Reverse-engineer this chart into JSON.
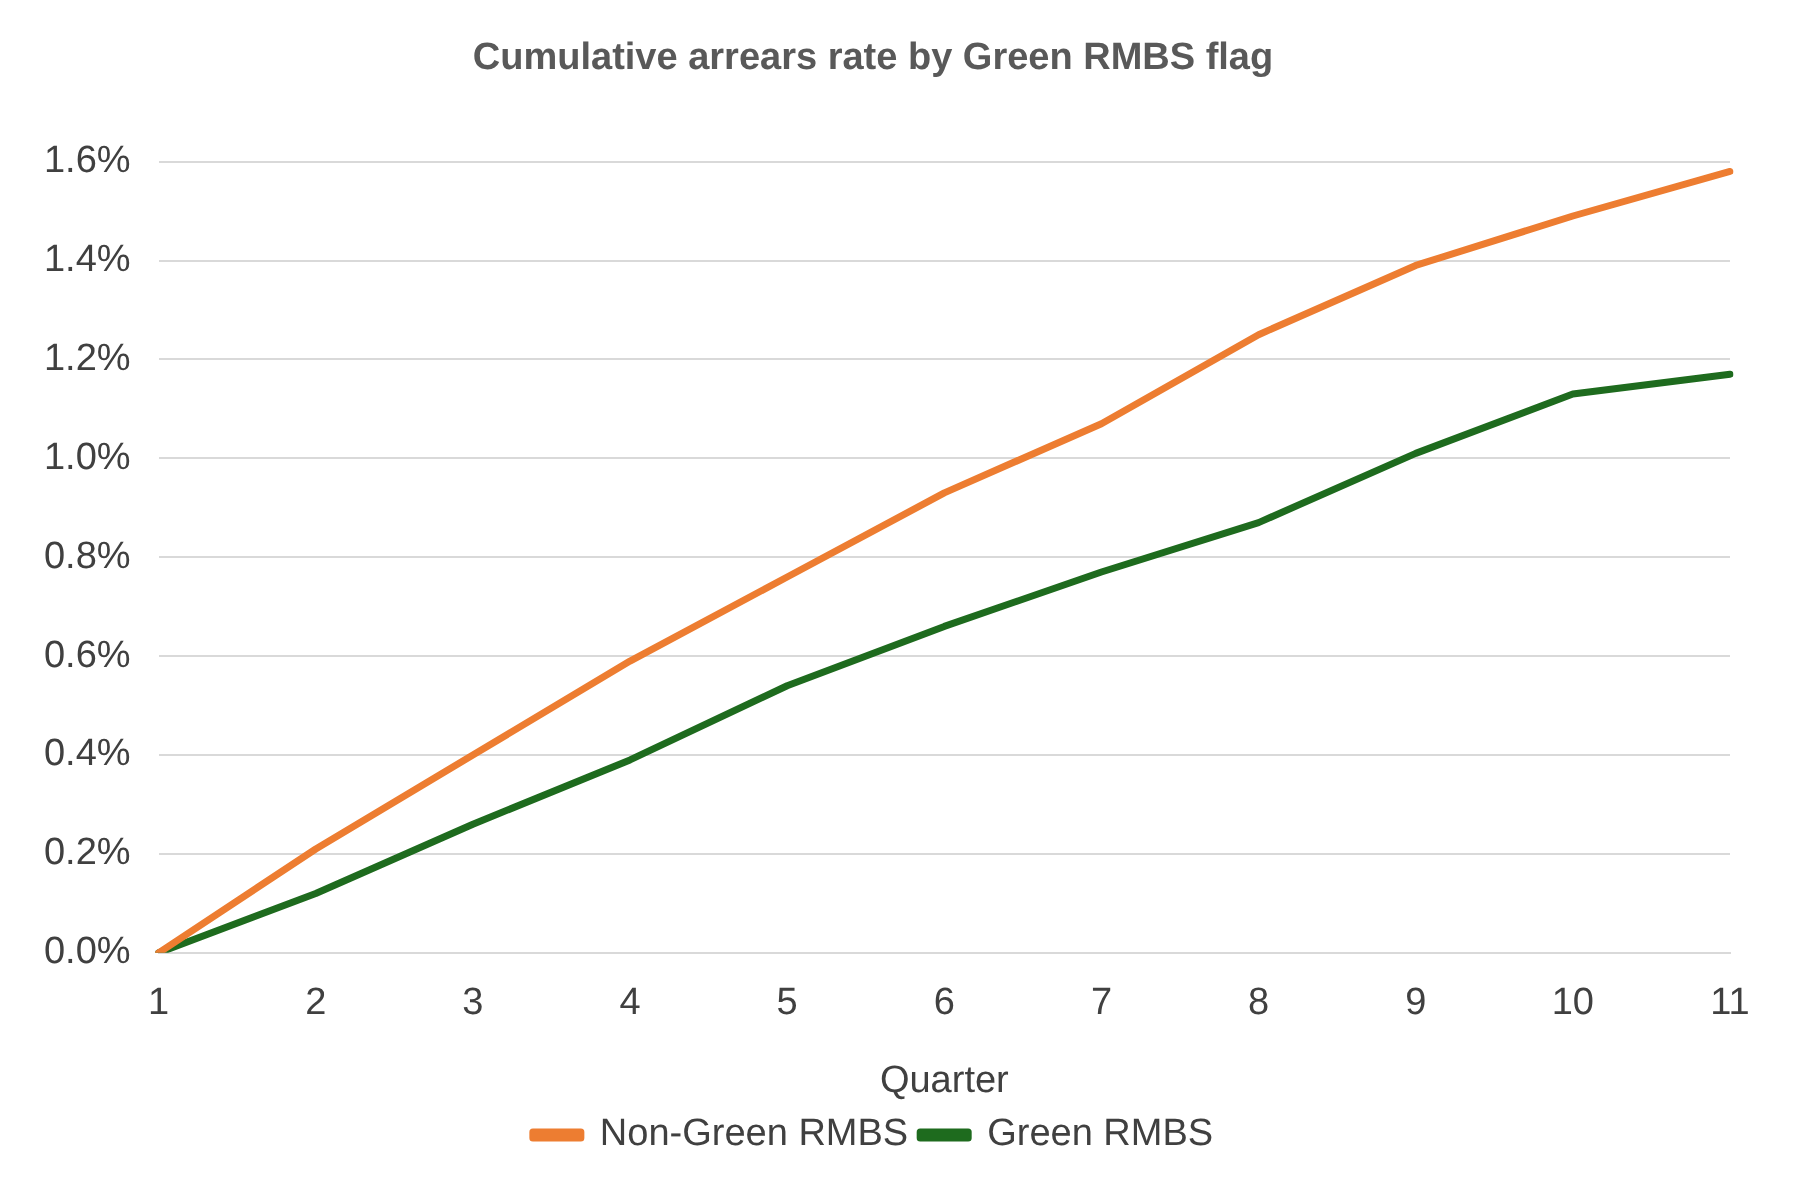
{
  "chart_data": {
    "type": "line",
    "title": "Cumulative arrears rate by Green RMBS flag",
    "xlabel": "Quarter",
    "categories": [
      "1",
      "2",
      "3",
      "4",
      "5",
      "6",
      "7",
      "8",
      "9",
      "10",
      "11"
    ],
    "series": [
      {
        "name": "Non-Green RMBS",
        "color": "#ed7d31",
        "values": [
          0,
          0.21,
          0.4,
          0.59,
          0.76,
          0.93,
          1.07,
          1.25,
          1.39,
          1.49,
          1.58
        ]
      },
      {
        "name": "Green RMBS",
        "color": "#1e6b1e",
        "values": [
          0,
          0.12,
          0.26,
          0.39,
          0.54,
          0.66,
          0.77,
          0.87,
          1.01,
          1.13,
          1.17
        ]
      }
    ],
    "ylim": [
      0,
      1.6
    ],
    "yticks": [
      {
        "value": 0,
        "label": "0.0%"
      },
      {
        "value": 0.2,
        "label": "0.2%"
      },
      {
        "value": 0.4,
        "label": "0.4%"
      },
      {
        "value": 0.6,
        "label": "0.6%"
      },
      {
        "value": 0.8,
        "label": "0.8%"
      },
      {
        "value": 1.0,
        "label": "1.0%"
      },
      {
        "value": 1.2,
        "label": "1.2%"
      },
      {
        "value": 1.4,
        "label": "1.4%"
      },
      {
        "value": 1.6,
        "label": "1.6%"
      }
    ],
    "grid": "y",
    "legend": "bottom",
    "marker": "none",
    "line_style": "solid"
  }
}
